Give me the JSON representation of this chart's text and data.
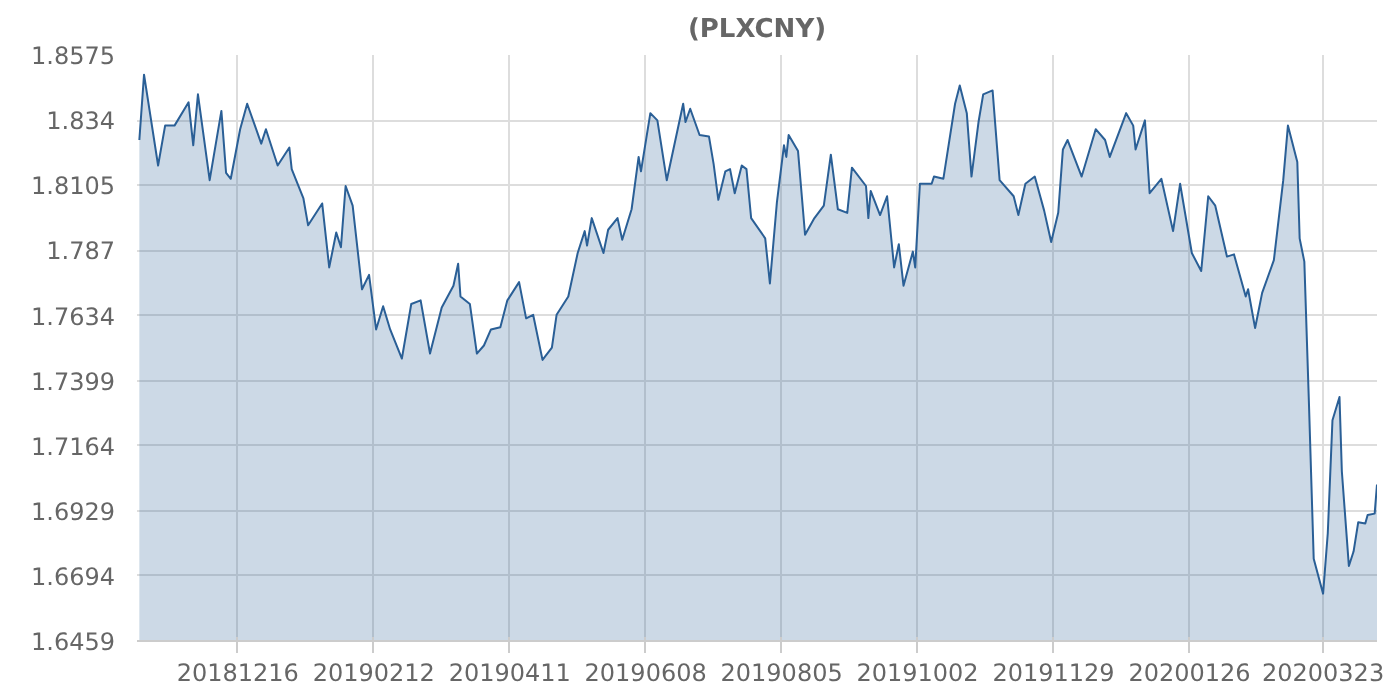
{
  "chart_data": {
    "type": "area",
    "title": "(PLXCNY)",
    "x": [
      "2018-11-04",
      "2018-11-06",
      "2018-11-12",
      "2018-11-15",
      "2018-11-19",
      "2018-11-25",
      "2018-11-27",
      "2018-11-29",
      "2018-12-04",
      "2018-12-09",
      "2018-12-11",
      "2018-12-13",
      "2018-12-17",
      "2018-12-20",
      "2018-12-26",
      "2018-12-28",
      "2019-01-02",
      "2019-01-07",
      "2019-01-08",
      "2019-01-13",
      "2019-01-15",
      "2019-01-21",
      "2019-01-24",
      "2019-01-27",
      "2019-01-29",
      "2019-01-31",
      "2019-02-03",
      "2019-02-07",
      "2019-02-10",
      "2019-02-13",
      "2019-02-16",
      "2019-02-19",
      "2019-02-24",
      "2019-02-28",
      "2019-03-04",
      "2019-03-08",
      "2019-03-13",
      "2019-03-18",
      "2019-03-20",
      "2019-03-21",
      "2019-03-25",
      "2019-03-28",
      "2019-03-31",
      "2019-04-03",
      "2019-04-07",
      "2019-04-10",
      "2019-04-15",
      "2019-04-18",
      "2019-04-21",
      "2019-04-25",
      "2019-04-29",
      "2019-05-01",
      "2019-05-06",
      "2019-05-10",
      "2019-05-13",
      "2019-05-14",
      "2019-05-16",
      "2019-05-21",
      "2019-05-23",
      "2019-05-27",
      "2019-05-29",
      "2019-06-02",
      "2019-06-05",
      "2019-06-06",
      "2019-06-10",
      "2019-06-13",
      "2019-06-17",
      "2019-06-24",
      "2019-06-25",
      "2019-06-27",
      "2019-07-01",
      "2019-07-05",
      "2019-07-07",
      "2019-07-09",
      "2019-07-12",
      "2019-07-14",
      "2019-07-16",
      "2019-07-19",
      "2019-07-21",
      "2019-07-23",
      "2019-07-29",
      "2019-07-31",
      "2019-08-03",
      "2019-08-06",
      "2019-08-07",
      "2019-08-08",
      "2019-08-12",
      "2019-08-15",
      "2019-08-19",
      "2019-08-23",
      "2019-08-26",
      "2019-08-29",
      "2019-09-02",
      "2019-09-04",
      "2019-09-10",
      "2019-09-11",
      "2019-09-12",
      "2019-09-16",
      "2019-09-19",
      "2019-09-22",
      "2019-09-24",
      "2019-09-26",
      "2019-09-30",
      "2019-10-01",
      "2019-10-03",
      "2019-10-08",
      "2019-10-09",
      "2019-10-13",
      "2019-10-18",
      "2019-10-20",
      "2019-10-23",
      "2019-10-25",
      "2019-10-28",
      "2019-10-30",
      "2019-11-03",
      "2019-11-06",
      "2019-11-12",
      "2019-11-14",
      "2019-11-17",
      "2019-11-21",
      "2019-11-25",
      "2019-11-28",
      "2019-12-01",
      "2019-12-03",
      "2019-12-05",
      "2019-12-11",
      "2019-12-17",
      "2019-12-21",
      "2019-12-23",
      "2019-12-30",
      "2020-01-02",
      "2020-01-03",
      "2020-01-07",
      "2020-01-09",
      "2020-01-14",
      "2020-01-19",
      "2020-01-22",
      "2020-01-27",
      "2020-01-31",
      "2020-02-03",
      "2020-02-06",
      "2020-02-11",
      "2020-02-14",
      "2020-02-19",
      "2020-02-20",
      "2020-02-23",
      "2020-02-26",
      "2020-03-02",
      "2020-03-06",
      "2020-03-08",
      "2020-03-12",
      "2020-03-13",
      "2020-03-15",
      "2020-03-17",
      "2020-03-19",
      "2020-03-23",
      "2020-03-25",
      "2020-03-27",
      "2020-03-30",
      "2020-03-31",
      "2020-04-03",
      "2020-04-05",
      "2020-04-07",
      "2020-04-10",
      "2020-04-11",
      "2020-04-14",
      "2020-04-15"
    ],
    "series": [
      {
        "color": "#2a5f96",
        "values": [
          1.8268,
          1.8504,
          1.8176,
          1.832,
          1.832,
          1.8404,
          1.8249,
          1.8433,
          1.8123,
          1.8373,
          1.8149,
          1.8128,
          1.8307,
          1.8399,
          1.8255,
          1.8307,
          1.8176,
          1.8241,
          1.8163,
          1.8057,
          1.796,
          1.8039,
          1.7808,
          1.7934,
          1.7881,
          1.8102,
          1.8031,
          1.7729,
          1.7781,
          1.7584,
          1.7668,
          1.7584,
          1.7479,
          1.7676,
          1.7689,
          1.7497,
          1.7663,
          1.7742,
          1.7821,
          1.7703,
          1.7676,
          1.7497,
          1.7526,
          1.7584,
          1.7592,
          1.7689,
          1.7755,
          1.7624,
          1.7637,
          1.7474,
          1.7518,
          1.7637,
          1.7703,
          1.786,
          1.7939,
          1.7887,
          1.7986,
          1.786,
          1.7944,
          1.7986,
          1.7908,
          1.8018,
          1.8207,
          1.8155,
          1.8365,
          1.8339,
          1.8123,
          1.8399,
          1.8333,
          1.8381,
          1.8286,
          1.8281,
          1.8181,
          1.8052,
          1.8155,
          1.8163,
          1.8076,
          1.8176,
          1.8163,
          1.7986,
          1.7913,
          1.775,
          1.8044,
          1.8249,
          1.8207,
          1.8286,
          1.8228,
          1.7926,
          1.7986,
          1.8031,
          1.8215,
          1.8018,
          1.8005,
          1.8168,
          1.8102,
          1.7986,
          1.8084,
          1.7997,
          1.8065,
          1.7808,
          1.7892,
          1.7742,
          1.7865,
          1.7808,
          1.811,
          1.811,
          1.8136,
          1.8128,
          1.8399,
          1.8465,
          1.8365,
          1.8136,
          1.8333,
          1.8433,
          1.8447,
          1.8123,
          1.8065,
          1.7997,
          1.811,
          1.8136,
          1.8013,
          1.79,
          1.8005,
          1.8234,
          1.8268,
          1.8136,
          1.8307,
          1.8268,
          1.8207,
          1.8365,
          1.832,
          1.8234,
          1.8339,
          1.8076,
          1.8128,
          1.7939,
          1.811,
          1.786,
          1.7795,
          1.8065,
          1.8031,
          1.7847,
          1.7855,
          1.7703,
          1.7729,
          1.7589,
          1.7716,
          1.7834,
          1.8123,
          1.832,
          1.8189,
          1.7913,
          1.7829,
          1.7308,
          1.6756,
          1.663,
          1.6848,
          1.7256,
          1.734,
          1.7072,
          1.673,
          1.6782,
          1.6888,
          1.6883,
          1.6914,
          1.6919,
          1.7024
        ]
      }
    ],
    "xlim": [
      "2018-11-03",
      "2020-04-15"
    ],
    "xticks": [
      {
        "value": "2018-12-16",
        "label": "20181216"
      },
      {
        "value": "2019-02-12",
        "label": "20190212"
      },
      {
        "value": "2019-04-11",
        "label": "20190411"
      },
      {
        "value": "2019-06-08",
        "label": "20190608"
      },
      {
        "value": "2019-08-05",
        "label": "20190805"
      },
      {
        "value": "2019-10-02",
        "label": "20191002"
      },
      {
        "value": "2019-11-29",
        "label": "20191129"
      },
      {
        "value": "2020-01-26",
        "label": "20200126"
      },
      {
        "value": "2020-03-23",
        "label": "20200323"
      }
    ],
    "ylim": [
      1.6459,
      1.8575
    ],
    "yticks": [
      1.6459,
      1.6694,
      1.6929,
      1.7164,
      1.7399,
      1.7634,
      1.787,
      1.8105,
      1.834,
      1.8575
    ],
    "grid": true
  }
}
